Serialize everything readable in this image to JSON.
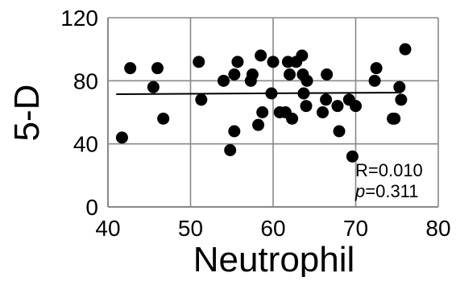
{
  "chart_data": {
    "type": "scatter",
    "title": "",
    "xlabel": "Neutrophil",
    "ylabel": "5-D",
    "xlim": [
      40,
      80
    ],
    "ylim": [
      0,
      120
    ],
    "xticks": [
      "40",
      "50",
      "60",
      "70",
      "80"
    ],
    "yticks": [
      "0",
      "40",
      "80",
      "120"
    ],
    "grid": true,
    "legend": "none",
    "series": [
      {
        "points": [
          [
            41.7,
            44
          ],
          [
            42.7,
            88
          ],
          [
            45.5,
            76
          ],
          [
            46.0,
            88
          ],
          [
            46.7,
            56
          ],
          [
            51.0,
            92
          ],
          [
            51.3,
            68
          ],
          [
            54.0,
            80
          ],
          [
            54.8,
            36
          ],
          [
            55.3,
            84
          ],
          [
            55.3,
            48
          ],
          [
            55.7,
            92
          ],
          [
            57.3,
            80
          ],
          [
            57.5,
            84
          ],
          [
            58.2,
            52
          ],
          [
            58.5,
            96
          ],
          [
            58.7,
            60
          ],
          [
            59.8,
            72
          ],
          [
            60.0,
            92
          ],
          [
            60.8,
            60
          ],
          [
            61.5,
            60
          ],
          [
            61.8,
            92
          ],
          [
            62.0,
            84
          ],
          [
            62.3,
            56
          ],
          [
            62.8,
            92
          ],
          [
            63.5,
            96
          ],
          [
            63.6,
            84
          ],
          [
            63.7,
            72
          ],
          [
            64.0,
            64
          ],
          [
            64.1,
            80
          ],
          [
            66.0,
            60
          ],
          [
            66.4,
            68
          ],
          [
            66.5,
            84
          ],
          [
            67.8,
            64
          ],
          [
            68.0,
            48
          ],
          [
            69.2,
            68
          ],
          [
            69.6,
            32
          ],
          [
            70.0,
            64
          ],
          [
            72.3,
            80
          ],
          [
            72.5,
            88
          ],
          [
            74.5,
            56
          ],
          [
            74.7,
            56
          ],
          [
            75.3,
            76
          ],
          [
            75.5,
            68
          ],
          [
            76.0,
            100
          ]
        ],
        "color": "#000000"
      }
    ],
    "trendline": {
      "x": [
        41,
        75.5
      ],
      "y": [
        71.5,
        72.5
      ]
    },
    "annotations": {
      "r_text": "R=0.010",
      "p_symbol": "p",
      "p_value": "=0.311"
    }
  }
}
